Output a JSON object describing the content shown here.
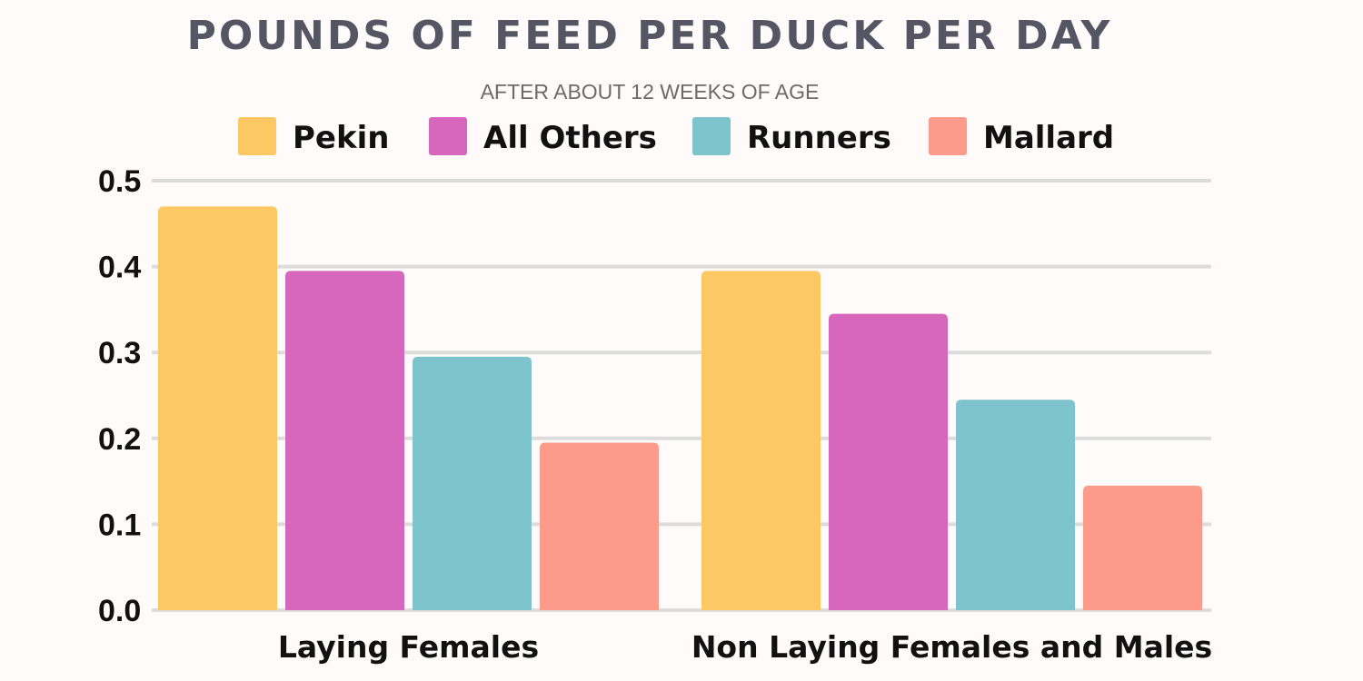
{
  "chart_data": {
    "type": "bar",
    "title": "POUNDS OF FEED PER DUCK PER DAY",
    "subtitle": "AFTER ABOUT 12 WEEKS OF AGE",
    "categories": [
      "Laying Females",
      "Non Laying Females and Males"
    ],
    "series": [
      {
        "name": "Pekin",
        "color": "#fcc864",
        "values": [
          0.47,
          0.395
        ]
      },
      {
        "name": "All Others",
        "color": "#d767bc",
        "values": [
          0.395,
          0.345
        ]
      },
      {
        "name": "Runners",
        "color": "#7ec4cc",
        "values": [
          0.295,
          0.245
        ]
      },
      {
        "name": "Mallard",
        "color": "#fd9b8a",
        "values": [
          0.195,
          0.145
        ]
      }
    ],
    "yticks": [
      "0.0",
      "0.1",
      "0.2",
      "0.3",
      "0.4",
      "0.5"
    ],
    "ylim": [
      0,
      0.5
    ],
    "xlabel": "",
    "ylabel": "",
    "grid": true,
    "legend_position": "top",
    "grid_color": "#dcdcdc"
  }
}
